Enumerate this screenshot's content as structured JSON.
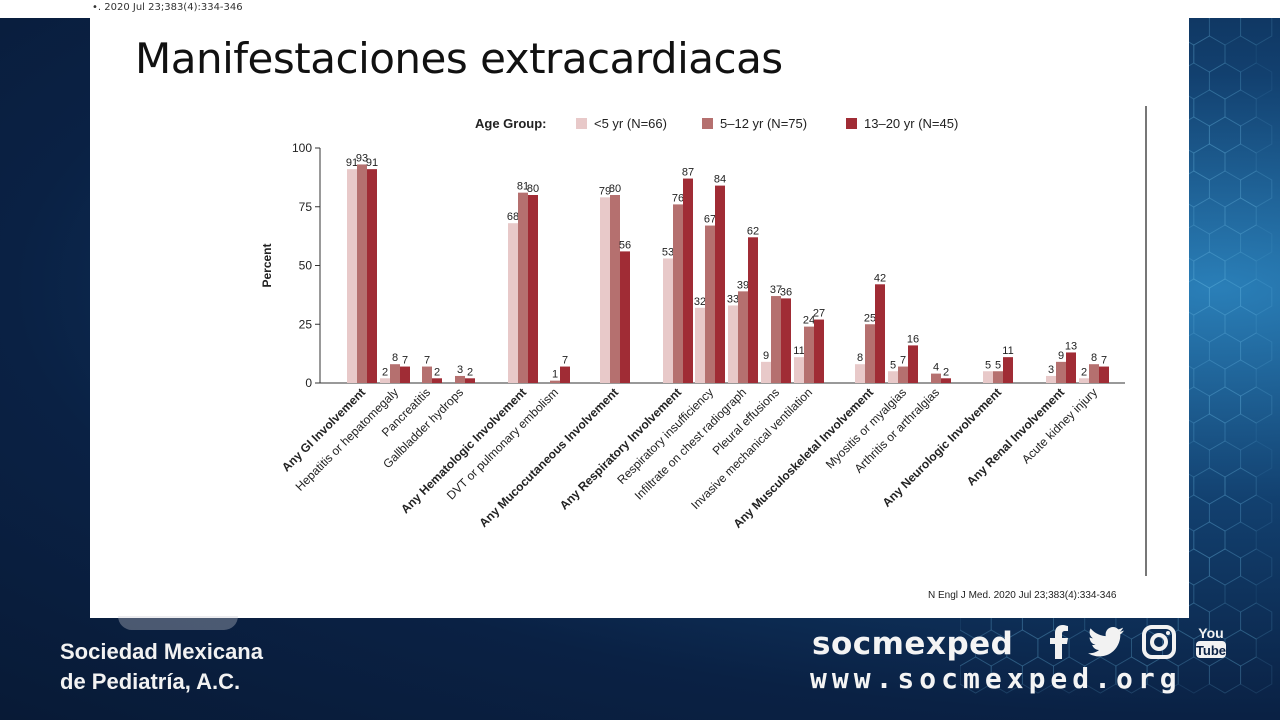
{
  "header": {
    "citation": "•. 2020 Jul 23;383(4):334-346"
  },
  "slide": {
    "title": "Manifestaciones extracardiacas",
    "source": "N Engl J Med. 2020 Jul 23;383(4):334-346"
  },
  "footer": {
    "org_line1": "Sociedad Mexicana",
    "org_line2": "de Pediatría, A.C.",
    "brand": "socmexped",
    "website": "www.socmexped.org",
    "social": [
      "f",
      "t",
      "ig",
      "YouTube"
    ],
    "youtube_top": "You",
    "youtube_bottom": "Tube"
  },
  "colors": {
    "s1": "#e8c9c9",
    "s2": "#b5706f",
    "s3": "#a02c35",
    "axis": "#333333"
  },
  "chart_data": {
    "type": "bar",
    "ylabel": "Percent",
    "ylim": [
      0,
      100
    ],
    "yticks": [
      0,
      25,
      50,
      75,
      100
    ],
    "legend_title": "Age Group:",
    "series": [
      {
        "name": "<5 yr (N=66)"
      },
      {
        "name": "5–12 yr (N=75)"
      },
      {
        "name": "13–20 yr (N=45)"
      }
    ],
    "categories": [
      {
        "label": "Any GI Involvement",
        "bold": true,
        "values": [
          91,
          93,
          91
        ]
      },
      {
        "label": "Hepatitis or hepatomegaly",
        "bold": false,
        "values": [
          2,
          8,
          7
        ]
      },
      {
        "label": "Pancreatitis",
        "bold": false,
        "values": [
          0,
          7,
          2
        ]
      },
      {
        "label": "Gallbladder hydrops",
        "bold": false,
        "values": [
          0,
          3,
          2
        ]
      },
      {
        "label": "Any Hematologic Involvement",
        "bold": true,
        "values": [
          68,
          81,
          80
        ]
      },
      {
        "label": "DVT or pulmonary embolism",
        "bold": false,
        "values": [
          0,
          1,
          7
        ]
      },
      {
        "label": "Any Mucocutaneous Involvement",
        "bold": true,
        "values": [
          79,
          80,
          56
        ]
      },
      {
        "label": "Any Respiratory Involvement",
        "bold": true,
        "values": [
          53,
          76,
          87
        ]
      },
      {
        "label": "Respiratory insufficiency",
        "bold": false,
        "values": [
          32,
          67,
          84
        ]
      },
      {
        "label": "Infiltrate on chest radiograph",
        "bold": false,
        "values": [
          33,
          39,
          62
        ]
      },
      {
        "label": "Pleural effusions",
        "bold": false,
        "values": [
          9,
          37,
          36
        ]
      },
      {
        "label": "Invasive mechanical ventilation",
        "bold": false,
        "values": [
          11,
          24,
          27
        ]
      },
      {
        "label": "Any Musculoskeletal Involvement",
        "bold": true,
        "values": [
          8,
          25,
          42
        ]
      },
      {
        "label": "Myositis or myalgias",
        "bold": false,
        "values": [
          5,
          7,
          16
        ]
      },
      {
        "label": "Arthritis or arthralgias",
        "bold": false,
        "values": [
          0,
          4,
          2
        ]
      },
      {
        "label": "Any Neurologic Involvement",
        "bold": true,
        "values": [
          5,
          5,
          11
        ]
      },
      {
        "label": "Any Renal Involvement",
        "bold": true,
        "values": [
          3,
          9,
          13
        ]
      },
      {
        "label": "Acute kidney injury",
        "bold": false,
        "values": [
          2,
          8,
          7
        ]
      }
    ],
    "data_labels": [
      [
        "91",
        "93",
        "91"
      ],
      [
        "2",
        "8",
        "7"
      ],
      [
        "",
        "7",
        "2"
      ],
      [
        "",
        "3",
        "2"
      ],
      [
        "68",
        "81",
        "80"
      ],
      [
        "",
        "1",
        "7"
      ],
      [
        "79",
        "80",
        "56"
      ],
      [
        "53",
        "76",
        "87"
      ],
      [
        "32",
        "67",
        "84"
      ],
      [
        "33",
        "39",
        "62"
      ],
      [
        "9",
        "37",
        "36"
      ],
      [
        "11",
        "24",
        "27"
      ],
      [
        "8",
        "25",
        "42"
      ],
      [
        "5",
        "7",
        "16"
      ],
      [
        "",
        "4",
        "2"
      ],
      [
        "5",
        "5",
        "11"
      ],
      [
        "3",
        "9",
        "13"
      ],
      [
        "2",
        "8",
        "7"
      ]
    ]
  }
}
